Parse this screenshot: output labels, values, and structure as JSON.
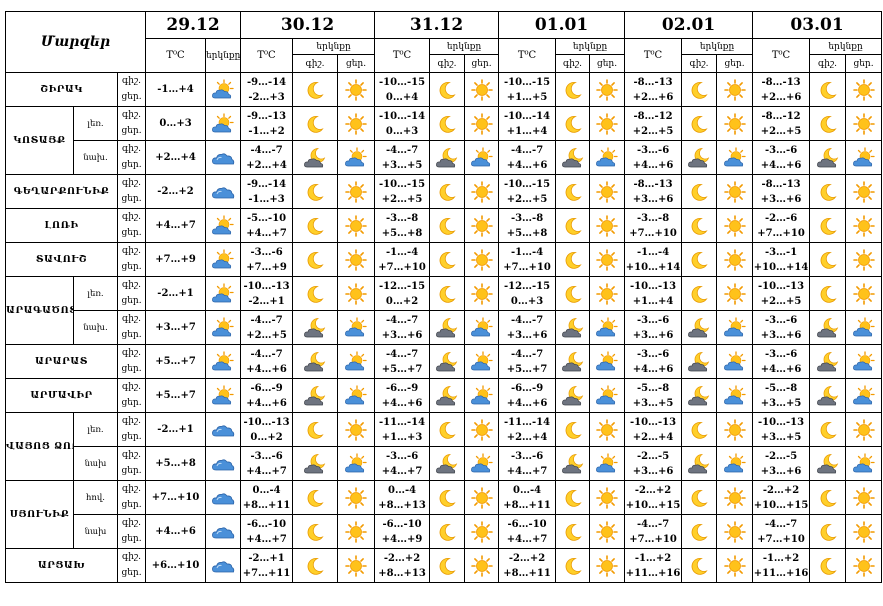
{
  "header": {
    "title": "Մարզեր",
    "temp_label": "T⁰C",
    "sky_label": "երկնքը",
    "night_label": "գիշ.",
    "day_label": "ցեր.",
    "dates": [
      "29.12",
      "30.12",
      "31.12",
      "01.01",
      "02.01",
      "03.01"
    ]
  },
  "rows": [
    {
      "region": "ՇԻՐԱԿ",
      "sub": "",
      "rowspan": 1,
      "night": "գիշ.",
      "day": "ցեր.",
      "d0": {
        "t": "-1…+4",
        "sky": "partly-cloudy-icon"
      },
      "days": [
        {
          "n": "-9…-14",
          "d": "-2…+3",
          "ni": "moon-icon",
          "di": "sun-icon"
        },
        {
          "n": "-10…-15",
          "d": "0…+4",
          "ni": "moon-icon",
          "di": "sun-icon"
        },
        {
          "n": "-10…-15",
          "d": "+1…+5",
          "ni": "moon-icon",
          "di": "sun-icon"
        },
        {
          "n": "-8…-13",
          "d": "+2…+6",
          "ni": "moon-icon",
          "di": "sun-icon"
        },
        {
          "n": "-8…-13",
          "d": "+2…+6",
          "ni": "moon-icon",
          "di": "sun-icon"
        }
      ]
    },
    {
      "region": "ԿՈՏԱՅՔ",
      "sub": "լեռ.",
      "rowspan": 2,
      "night": "գիշ.",
      "day": "ցեր.",
      "d0": {
        "t": "0…+3",
        "sky": "partly-cloudy-icon"
      },
      "days": [
        {
          "n": "-9…-13",
          "d": "-1…+2",
          "ni": "moon-icon",
          "di": "sun-icon"
        },
        {
          "n": "-10…-14",
          "d": "0…+3",
          "ni": "moon-icon",
          "di": "sun-icon"
        },
        {
          "n": "-10…-14",
          "d": "+1…+4",
          "ni": "moon-icon",
          "di": "sun-icon"
        },
        {
          "n": "-8…-12",
          "d": "+2…+5",
          "ni": "moon-icon",
          "di": "sun-icon"
        },
        {
          "n": "-8…-12",
          "d": "+2…+5",
          "ni": "moon-icon",
          "di": "sun-icon"
        }
      ]
    },
    {
      "region": "",
      "sub": "նախ.",
      "rowspan": 0,
      "night": "գիշ.",
      "day": "ցեր.",
      "d0": {
        "t": "+2…+4",
        "sky": "cloud-icon"
      },
      "days": [
        {
          "n": "-4…-7",
          "d": "+2…+4",
          "ni": "cloudy-night-icon",
          "di": "partly-cloudy-icon"
        },
        {
          "n": "-4…-7",
          "d": "+3…+5",
          "ni": "cloudy-night-icon",
          "di": "partly-cloudy-icon"
        },
        {
          "n": "-4…-7",
          "d": "+4…+6",
          "ni": "cloudy-night-icon",
          "di": "partly-cloudy-icon"
        },
        {
          "n": "-3…-6",
          "d": "+4…+6",
          "ni": "cloudy-night-icon",
          "di": "partly-cloudy-icon"
        },
        {
          "n": "-3…-6",
          "d": "+4…+6",
          "ni": "cloudy-night-icon",
          "di": "partly-cloudy-icon"
        }
      ]
    },
    {
      "region": "ԳԵՂԱՐՔՈՒՆԻՔ",
      "sub": "",
      "rowspan": 1,
      "night": "գիշ.",
      "day": "ցեր.",
      "d0": {
        "t": "-2…+2",
        "sky": "cloud-icon"
      },
      "days": [
        {
          "n": "-9…-14",
          "d": "-1…+3",
          "ni": "moon-icon",
          "di": "sun-icon"
        },
        {
          "n": "-10…-15",
          "d": "+2…+5",
          "ni": "moon-icon",
          "di": "sun-icon"
        },
        {
          "n": "-10…-15",
          "d": "+2…+5",
          "ni": "moon-icon",
          "di": "sun-icon"
        },
        {
          "n": "-8…-13",
          "d": "+3…+6",
          "ni": "moon-icon",
          "di": "sun-icon"
        },
        {
          "n": "-8…-13",
          "d": "+3…+6",
          "ni": "moon-icon",
          "di": "sun-icon"
        }
      ]
    },
    {
      "region": "ԼՈՌԻ",
      "sub": "",
      "rowspan": 1,
      "night": "գիշ.",
      "day": "ցեր.",
      "d0": {
        "t": "+4…+7",
        "sky": "partly-cloudy-icon"
      },
      "days": [
        {
          "n": "-5…-10",
          "d": "+4…+7",
          "ni": "moon-icon",
          "di": "sun-icon"
        },
        {
          "n": "-3…-8",
          "d": "+5…+8",
          "ni": "moon-icon",
          "di": "sun-icon"
        },
        {
          "n": "-3…-8",
          "d": "+5…+8",
          "ni": "moon-icon",
          "di": "sun-icon"
        },
        {
          "n": "-3…-8",
          "d": "+7…+10",
          "ni": "moon-icon",
          "di": "sun-icon"
        },
        {
          "n": "-2…-6",
          "d": "+7…+10",
          "ni": "moon-icon",
          "di": "sun-icon"
        }
      ]
    },
    {
      "region": "ՏԱՎՈՒՇ",
      "sub": "",
      "rowspan": 1,
      "night": "գիշ.",
      "day": "ցեր.",
      "d0": {
        "t": "+7…+9",
        "sky": "partly-cloudy-icon"
      },
      "days": [
        {
          "n": "-3…-6",
          "d": "+7…+9",
          "ni": "moon-icon",
          "di": "sun-icon"
        },
        {
          "n": "-1…-4",
          "d": "+7…+10",
          "ni": "moon-icon",
          "di": "sun-icon"
        },
        {
          "n": "-1…-4",
          "d": "+7…+10",
          "ni": "moon-icon",
          "di": "sun-icon"
        },
        {
          "n": "-1…-4",
          "d": "+10…+14",
          "ni": "moon-icon",
          "di": "sun-icon"
        },
        {
          "n": "-3…-1",
          "d": "+10…+14",
          "ni": "moon-icon",
          "di": "sun-icon"
        }
      ]
    },
    {
      "region": "ԱՐԱԳԱԾՈՏՆ",
      "sub": "լեռ.",
      "rowspan": 2,
      "night": "գիշ.",
      "day": "ցեր.",
      "d0": {
        "t": "-2…+1",
        "sky": "partly-cloudy-icon"
      },
      "days": [
        {
          "n": "-10…-13",
          "d": "-2…+1",
          "ni": "moon-icon",
          "di": "sun-icon"
        },
        {
          "n": "-12…-15",
          "d": "0…+2",
          "ni": "moon-icon",
          "di": "sun-icon"
        },
        {
          "n": "-12…-15",
          "d": "0…+3",
          "ni": "moon-icon",
          "di": "sun-icon"
        },
        {
          "n": "-10…-13",
          "d": "+1…+4",
          "ni": "moon-icon",
          "di": "sun-icon"
        },
        {
          "n": "-10…-13",
          "d": "+2…+5",
          "ni": "moon-icon",
          "di": "sun-icon"
        }
      ]
    },
    {
      "region": "",
      "sub": "նախ.",
      "rowspan": 0,
      "night": "գիշ.",
      "day": "ցեր.",
      "d0": {
        "t": "+3…+7",
        "sky": "partly-cloudy-icon"
      },
      "days": [
        {
          "n": "-4…-7",
          "d": "+2…+5",
          "ni": "cloudy-night-icon",
          "di": "partly-cloudy-icon"
        },
        {
          "n": "-4…-7",
          "d": "+3…+6",
          "ni": "cloudy-night-icon",
          "di": "partly-cloudy-icon"
        },
        {
          "n": "-4…-7",
          "d": "+3…+6",
          "ni": "cloudy-night-icon",
          "di": "partly-cloudy-icon"
        },
        {
          "n": "-3…-6",
          "d": "+3…+6",
          "ni": "cloudy-night-icon",
          "di": "partly-cloudy-icon"
        },
        {
          "n": "-3…-6",
          "d": "+3…+6",
          "ni": "cloudy-night-icon",
          "di": "partly-cloudy-icon"
        }
      ]
    },
    {
      "region": "ԱՐԱՐԱՏ",
      "sub": "",
      "rowspan": 1,
      "night": "գիշ.",
      "day": "ցեր.",
      "d0": {
        "t": "+5…+7",
        "sky": "partly-cloudy-icon"
      },
      "days": [
        {
          "n": "-4…-7",
          "d": "+4…+6",
          "ni": "cloudy-night-icon",
          "di": "partly-cloudy-icon"
        },
        {
          "n": "-4…-7",
          "d": "+5…+7",
          "ni": "cloudy-night-icon",
          "di": "partly-cloudy-icon"
        },
        {
          "n": "-4…-7",
          "d": "+5…+7",
          "ni": "cloudy-night-icon",
          "di": "partly-cloudy-icon"
        },
        {
          "n": "-3…-6",
          "d": "+4…+6",
          "ni": "cloudy-night-icon",
          "di": "partly-cloudy-icon"
        },
        {
          "n": "-3…-6",
          "d": "+4…+6",
          "ni": "cloudy-night-icon",
          "di": "partly-cloudy-icon"
        }
      ]
    },
    {
      "region": "ԱՐՄԱՎԻՐ",
      "sub": "",
      "rowspan": 1,
      "night": "գիշ.",
      "day": "ցեր.",
      "d0": {
        "t": "+5…+7",
        "sky": "partly-cloudy-icon"
      },
      "days": [
        {
          "n": "-6…-9",
          "d": "+4…+6",
          "ni": "cloudy-night-icon",
          "di": "partly-cloudy-icon"
        },
        {
          "n": "-6…-9",
          "d": "+4…+6",
          "ni": "cloudy-night-icon",
          "di": "partly-cloudy-icon"
        },
        {
          "n": "-6…-9",
          "d": "+4…+6",
          "ni": "cloudy-night-icon",
          "di": "partly-cloudy-icon"
        },
        {
          "n": "-5…-8",
          "d": "+3…+5",
          "ni": "cloudy-night-icon",
          "di": "partly-cloudy-icon"
        },
        {
          "n": "-5…-8",
          "d": "+3…+5",
          "ni": "cloudy-night-icon",
          "di": "partly-cloudy-icon"
        }
      ]
    },
    {
      "region": "ՎԱՅՈՑ ՁՈՐ",
      "sub": "լեռ.",
      "rowspan": 2,
      "night": "գիշ.",
      "day": "ցեր.",
      "d0": {
        "t": "-2…+1",
        "sky": "cloud-icon"
      },
      "days": [
        {
          "n": "-10…-13",
          "d": "0…+2",
          "ni": "moon-icon",
          "di": "sun-icon"
        },
        {
          "n": "-11…-14",
          "d": "+1…+3",
          "ni": "moon-icon",
          "di": "sun-icon"
        },
        {
          "n": "-11…-14",
          "d": "+2…+4",
          "ni": "moon-icon",
          "di": "sun-icon"
        },
        {
          "n": "-10…-13",
          "d": "+2…+4",
          "ni": "moon-icon",
          "di": "sun-icon"
        },
        {
          "n": "-10…-13",
          "d": "+3…+5",
          "ni": "moon-icon",
          "di": "sun-icon"
        }
      ]
    },
    {
      "region": "",
      "sub": "նախ",
      "rowspan": 0,
      "night": "գիշ.",
      "day": "ցեր.",
      "d0": {
        "t": "+5…+8",
        "sky": "cloud-icon"
      },
      "days": [
        {
          "n": "-3…-6",
          "d": "+4…+7",
          "ni": "cloudy-night-icon",
          "di": "partly-cloudy-icon"
        },
        {
          "n": "-3…-6",
          "d": "+4…+7",
          "ni": "cloudy-night-icon",
          "di": "partly-cloudy-icon"
        },
        {
          "n": "-3…-6",
          "d": "+4…+7",
          "ni": "cloudy-night-icon",
          "di": "partly-cloudy-icon"
        },
        {
          "n": "-2…-5",
          "d": "+3…+6",
          "ni": "cloudy-night-icon",
          "di": "partly-cloudy-icon"
        },
        {
          "n": "-2…-5",
          "d": "+3…+6",
          "ni": "cloudy-night-icon",
          "di": "partly-cloudy-icon"
        }
      ]
    },
    {
      "region": "ՍՅՈՒՆԻՔ",
      "sub": "հով.",
      "rowspan": 2,
      "night": "գիշ.",
      "day": "ցեր.",
      "d0": {
        "t": "+7…+10",
        "sky": "cloud-icon"
      },
      "days": [
        {
          "n": "0…-4",
          "d": "+8…+11",
          "ni": "moon-icon",
          "di": "sun-icon"
        },
        {
          "n": "0…-4",
          "d": "+8…+13",
          "ni": "moon-icon",
          "di": "sun-icon"
        },
        {
          "n": "0…-4",
          "d": "+8…+11",
          "ni": "moon-icon",
          "di": "sun-icon"
        },
        {
          "n": "-2…+2",
          "d": "+10…+15",
          "ni": "moon-icon",
          "di": "sun-icon"
        },
        {
          "n": "-2…+2",
          "d": "+10…+15",
          "ni": "moon-icon",
          "di": "sun-icon"
        }
      ]
    },
    {
      "region": "",
      "sub": "նախ",
      "rowspan": 0,
      "night": "գիշ.",
      "day": "ցեր.",
      "d0": {
        "t": "+4…+6",
        "sky": "cloud-icon"
      },
      "days": [
        {
          "n": "-6…-10",
          "d": "+4…+7",
          "ni": "moon-icon",
          "di": "sun-icon"
        },
        {
          "n": "-6…-10",
          "d": "+4…+9",
          "ni": "moon-icon",
          "di": "sun-icon"
        },
        {
          "n": "-6…-10",
          "d": "+4…+7",
          "ni": "moon-icon",
          "di": "sun-icon"
        },
        {
          "n": "-4…-7",
          "d": "+7…+10",
          "ni": "moon-icon",
          "di": "sun-icon"
        },
        {
          "n": "-4…-7",
          "d": "+7…+10",
          "ni": "moon-icon",
          "di": "sun-icon"
        }
      ]
    },
    {
      "region": "ԱՐՑԱԽ",
      "sub": "",
      "rowspan": 1,
      "night": "գիշ.",
      "day": "ցեր.",
      "d0": {
        "t": "+6…+10",
        "sky": "cloud-icon"
      },
      "days": [
        {
          "n": "-2…+1",
          "d": "+7…+11",
          "ni": "moon-icon",
          "di": "sun-icon"
        },
        {
          "n": "-2…+2",
          "d": "+8…+13",
          "ni": "moon-icon",
          "di": "sun-icon"
        },
        {
          "n": "-2…+2",
          "d": "+8…+11",
          "ni": "moon-icon",
          "di": "sun-icon"
        },
        {
          "n": "-1…+2",
          "d": "+11…+16",
          "ni": "moon-icon",
          "di": "sun-icon"
        },
        {
          "n": "-1…+2",
          "d": "+11…+16",
          "ni": "moon-icon",
          "di": "sun-icon"
        }
      ]
    }
  ]
}
